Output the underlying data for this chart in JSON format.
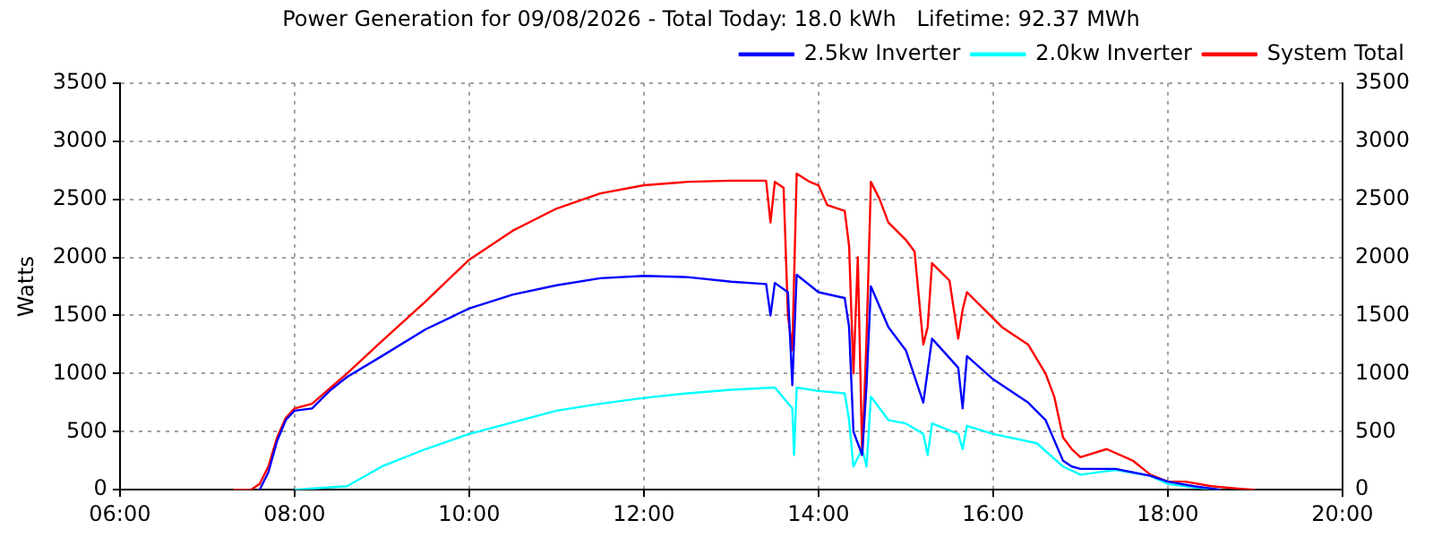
{
  "chart_data": {
    "type": "line",
    "title": "Power Generation for 09/08/2026 - Total Today: 18.0 kWh   Lifetime: 92.37 MWh",
    "ylabel": "Watts",
    "xlim": [
      6,
      20
    ],
    "xticks": [
      {
        "value": 6,
        "label": "06:00"
      },
      {
        "value": 8,
        "label": "08:00"
      },
      {
        "value": 10,
        "label": "10:00"
      },
      {
        "value": 12,
        "label": "12:00"
      },
      {
        "value": 14,
        "label": "14:00"
      },
      {
        "value": 16,
        "label": "16:00"
      },
      {
        "value": 18,
        "label": "18:00"
      },
      {
        "value": 20,
        "label": "20:00"
      }
    ],
    "ylim": [
      0,
      3500
    ],
    "yticks": [
      0,
      500,
      1000,
      1500,
      2000,
      2500,
      3000,
      3500
    ],
    "y2lim": [
      0,
      3500
    ],
    "y2ticks": [
      0,
      500,
      1000,
      1500,
      2000,
      2500,
      3000,
      3500
    ],
    "grid": true,
    "legend": "top right",
    "marker": "none",
    "line_style": "solid",
    "series": [
      {
        "name": "2.5kw Inverter",
        "color": "#0000ff",
        "x": [
          7.6,
          7.7,
          7.8,
          7.9,
          8.0,
          8.2,
          8.4,
          8.6,
          9.0,
          9.5,
          10.0,
          10.5,
          11.0,
          11.5,
          12.0,
          12.5,
          13.0,
          13.4,
          13.45,
          13.5,
          13.65,
          13.7,
          13.75,
          14.0,
          14.3,
          14.35,
          14.4,
          14.5,
          14.55,
          14.6,
          14.8,
          15.0,
          15.2,
          15.3,
          15.6,
          15.65,
          15.7,
          16.0,
          16.4,
          16.6,
          16.8,
          16.9,
          17.0,
          17.4,
          17.6,
          17.8,
          18.0,
          18.3,
          18.6
        ],
        "values": [
          0,
          150,
          420,
          600,
          680,
          700,
          850,
          970,
          1150,
          1380,
          1560,
          1680,
          1760,
          1820,
          1840,
          1830,
          1790,
          1770,
          1500,
          1780,
          1700,
          900,
          1850,
          1700,
          1650,
          1400,
          500,
          300,
          900,
          1750,
          1400,
          1200,
          750,
          1300,
          1050,
          700,
          1150,
          950,
          750,
          600,
          250,
          200,
          180,
          180,
          150,
          120,
          70,
          30,
          0
        ]
      },
      {
        "name": "2.0kw Inverter",
        "color": "#00ffff",
        "x": [
          8.0,
          8.6,
          9.0,
          9.5,
          10.0,
          10.5,
          11.0,
          11.5,
          12.0,
          12.5,
          13.0,
          13.5,
          13.7,
          13.72,
          13.75,
          14.0,
          14.3,
          14.35,
          14.4,
          14.5,
          14.55,
          14.6,
          14.8,
          15.0,
          15.2,
          15.25,
          15.3,
          15.6,
          15.65,
          15.7,
          16.0,
          16.5,
          16.8,
          17.0,
          17.4,
          17.8,
          18.0,
          18.3,
          18.6
        ],
        "values": [
          0,
          30,
          200,
          350,
          480,
          580,
          680,
          740,
          790,
          830,
          860,
          880,
          700,
          300,
          880,
          850,
          830,
          600,
          200,
          350,
          200,
          800,
          600,
          570,
          480,
          300,
          570,
          480,
          350,
          550,
          480,
          400,
          200,
          130,
          170,
          120,
          50,
          20,
          0
        ]
      },
      {
        "name": "System Total",
        "color": "#ff0000",
        "x": [
          7.3,
          7.5,
          7.6,
          7.7,
          7.8,
          7.9,
          8.0,
          8.2,
          8.4,
          8.6,
          9.0,
          9.5,
          10.0,
          10.5,
          11.0,
          11.5,
          12.0,
          12.5,
          13.0,
          13.4,
          13.45,
          13.5,
          13.6,
          13.65,
          13.7,
          13.75,
          13.9,
          14.0,
          14.1,
          14.3,
          14.35,
          14.4,
          14.45,
          14.5,
          14.55,
          14.6,
          14.7,
          14.8,
          15.0,
          15.1,
          15.2,
          15.25,
          15.3,
          15.5,
          15.6,
          15.65,
          15.7,
          15.9,
          16.1,
          16.4,
          16.6,
          16.7,
          16.8,
          16.9,
          17.0,
          17.3,
          17.6,
          17.8,
          18.0,
          18.2,
          18.5,
          18.8,
          19.0
        ],
        "values": [
          0,
          0,
          50,
          200,
          450,
          620,
          700,
          740,
          870,
          1000,
          1280,
          1620,
          1980,
          2230,
          2420,
          2550,
          2620,
          2650,
          2660,
          2660,
          2300,
          2650,
          2600,
          1500,
          1200,
          2720,
          2650,
          2620,
          2450,
          2400,
          2100,
          1000,
          2000,
          300,
          1300,
          2650,
          2500,
          2300,
          2150,
          2050,
          1250,
          1400,
          1950,
          1800,
          1300,
          1550,
          1700,
          1550,
          1400,
          1250,
          1000,
          800,
          450,
          350,
          280,
          350,
          250,
          130,
          70,
          70,
          30,
          10,
          0
        ]
      }
    ]
  }
}
